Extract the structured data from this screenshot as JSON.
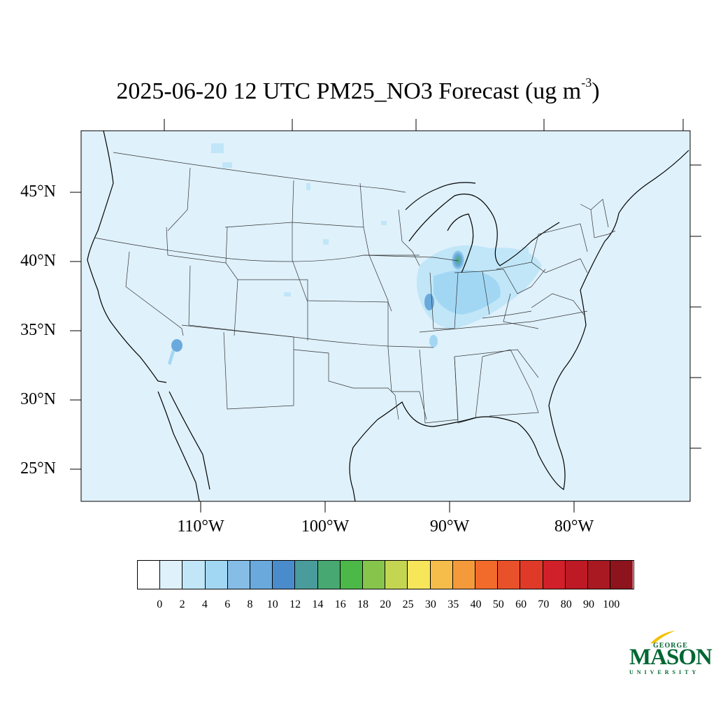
{
  "title": {
    "main": "2025-06-20 12 UTC PM25_NO3 Forecast (ug m",
    "exponent": "-3",
    "closing": ")"
  },
  "map": {
    "background_color": "#dff1fb",
    "lat_labels": [
      "45°N",
      "40°N",
      "35°N",
      "30°N",
      "25°N"
    ],
    "lon_labels": [
      "110°W",
      "100°W",
      "90°W",
      "80°W"
    ]
  },
  "colorbar": {
    "ticks": [
      "0",
      "2",
      "4",
      "6",
      "8",
      "10",
      "12",
      "14",
      "16",
      "18",
      "20",
      "25",
      "30",
      "35",
      "40",
      "50",
      "60",
      "70",
      "80",
      "90",
      "100"
    ],
    "colors": [
      "#ffffff",
      "#dff1fb",
      "#c0e6f8",
      "#a2d7f4",
      "#85bde6",
      "#6aa9dc",
      "#4a8ccb",
      "#4a9c9c",
      "#47a872",
      "#4cb848",
      "#86c44c",
      "#c4d552",
      "#f7e65a",
      "#f7bd4a",
      "#f59a3b",
      "#f26b2b",
      "#e9512b",
      "#df3a28",
      "#d12029",
      "#bd1a26",
      "#a91922",
      "#8d141c"
    ]
  },
  "logo": {
    "top_word": "GEORGE",
    "main_word": "MASON",
    "bottom_word": "UNIVERSITY"
  }
}
